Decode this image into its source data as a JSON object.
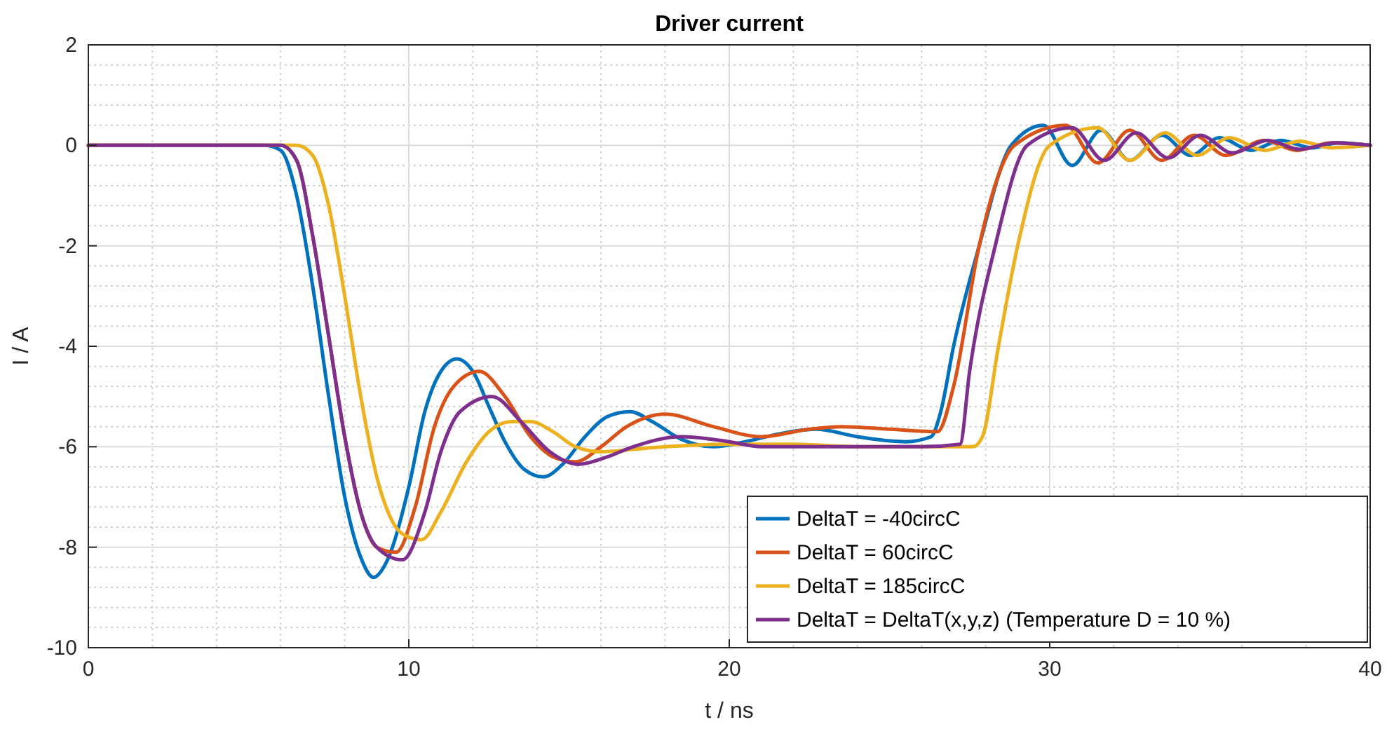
{
  "chart_data": {
    "type": "line",
    "title": "Driver current",
    "xlabel": "t / ns",
    "ylabel": "I / A",
    "xlim": [
      0,
      40
    ],
    "ylim": [
      -10,
      2
    ],
    "xticks": [
      0,
      10,
      20,
      30,
      40
    ],
    "yticks": [
      -10,
      -8,
      -6,
      -4,
      -2,
      0,
      2
    ],
    "grid": true,
    "legend": "bottom right",
    "marker": "none",
    "line_style": "solid",
    "series": [
      {
        "name": "DeltaT = -40circC",
        "color": "#0072bd",
        "x": [
          0,
          5.5,
          6,
          6.5,
          7,
          7.5,
          8,
          8.5,
          8.9,
          9.3,
          10,
          10.5,
          11,
          11.5,
          12,
          12.5,
          13,
          13.6,
          14.2,
          14.8,
          15.5,
          16.2,
          16.9,
          17.6,
          18.5,
          19.5,
          20.5,
          21.5,
          22.7,
          24,
          25.5,
          26.3,
          26.6,
          27,
          27.8,
          28.8,
          29.8,
          30.7,
          31.6,
          32.5,
          33.5,
          34.4,
          35.3,
          36.3,
          37.2,
          38.2,
          39,
          40
        ],
        "values": [
          0,
          0,
          -0.1,
          -1,
          -2.8,
          -5,
          -7,
          -8.2,
          -8.6,
          -8.3,
          -6.8,
          -5.3,
          -4.5,
          -4.25,
          -4.5,
          -5.2,
          -5.9,
          -6.45,
          -6.6,
          -6.35,
          -5.8,
          -5.4,
          -5.3,
          -5.5,
          -5.85,
          -6,
          -5.9,
          -5.75,
          -5.65,
          -5.8,
          -5.9,
          -5.8,
          -5.3,
          -4,
          -2,
          0,
          0.4,
          -0.4,
          0.3,
          -0.3,
          0.2,
          -0.2,
          0.15,
          -0.1,
          0.1,
          -0.05,
          0.05,
          0
        ]
      },
      {
        "name": "DeltaT = 60circC",
        "color": "#d95319",
        "x": [
          0,
          6,
          6.5,
          7,
          7.5,
          8,
          8.5,
          9,
          9.6,
          10.2,
          10.8,
          11.4,
          12.2,
          13,
          13.8,
          14.5,
          15.2,
          16,
          16.8,
          18,
          19.5,
          21,
          22.5,
          23.5,
          25,
          26.5,
          27,
          27.8,
          28.9,
          30.5,
          31.5,
          32.5,
          33.5,
          34.5,
          35.5,
          36.7,
          37.7,
          38.8,
          40
        ],
        "values": [
          0,
          0,
          -0.3,
          -1.8,
          -3.8,
          -5.8,
          -7.3,
          -8,
          -8.1,
          -7.2,
          -5.6,
          -4.8,
          -4.5,
          -5,
          -5.8,
          -6.2,
          -6.3,
          -6,
          -5.6,
          -5.35,
          -5.6,
          -5.8,
          -5.65,
          -5.6,
          -5.65,
          -5.7,
          -4.8,
          -2,
          0,
          0.4,
          -0.35,
          0.3,
          -0.3,
          0.2,
          -0.2,
          0.1,
          -0.1,
          0.05,
          0
        ]
      },
      {
        "name": "DeltaT = 185circC",
        "color": "#edb120",
        "x": [
          0,
          6.5,
          7,
          7.5,
          8,
          8.5,
          9,
          9.5,
          10,
          10.4,
          11,
          11.8,
          12.5,
          13.2,
          13.8,
          14.5,
          15.2,
          16,
          17,
          18,
          20,
          22,
          24,
          26,
          27.6,
          27.9,
          28.4,
          29,
          30,
          31.5,
          32.5,
          33.6,
          34.6,
          35.6,
          36.7,
          37.8,
          38.8,
          40
        ],
        "values": [
          0,
          0,
          -0.2,
          -1.2,
          -3,
          -5,
          -6.6,
          -7.5,
          -7.8,
          -7.85,
          -7.3,
          -6.3,
          -5.7,
          -5.5,
          -5.5,
          -5.7,
          -6,
          -6.1,
          -6.05,
          -6,
          -5.95,
          -5.95,
          -6,
          -6,
          -6,
          -5.8,
          -4,
          -2,
          0,
          0.35,
          -0.3,
          0.25,
          -0.2,
          0.15,
          -0.1,
          0.08,
          -0.05,
          0
        ]
      },
      {
        "name": "DeltaT = DeltaT(x,y,z) (Temperature D = 10 %)",
        "color": "#7e2f8e",
        "x": [
          0,
          6,
          6.5,
          7,
          7.5,
          8,
          8.5,
          9,
          9.8,
          10.5,
          11,
          11.6,
          12.6,
          13.5,
          14.4,
          15.3,
          16.2,
          17,
          18.5,
          20,
          21,
          23,
          26,
          27.2,
          27.5,
          28.3,
          29.3,
          30.7,
          31.7,
          32.7,
          33.7,
          34.7,
          35.7,
          36.8,
          37.8,
          38.9,
          40
        ],
        "values": [
          0,
          0,
          -0.3,
          -1.8,
          -3.8,
          -5.8,
          -7.3,
          -8,
          -8.25,
          -7.3,
          -6.1,
          -5.3,
          -5,
          -5.5,
          -6.1,
          -6.35,
          -6.2,
          -6,
          -5.8,
          -5.9,
          -6,
          -6,
          -6,
          -5.95,
          -4.5,
          -2,
          0,
          0.35,
          -0.3,
          0.25,
          -0.25,
          0.2,
          -0.15,
          0.1,
          -0.08,
          0.05,
          0
        ]
      }
    ]
  }
}
